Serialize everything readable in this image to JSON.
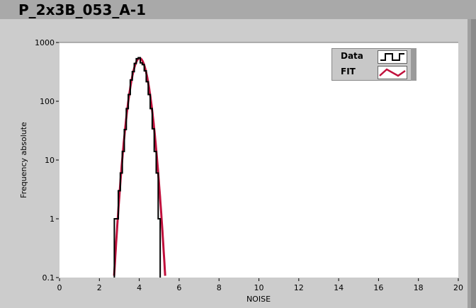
{
  "title": "P_2x3B_053_A-1",
  "chart_data": {
    "type": "line",
    "xlabel": "NOISE",
    "ylabel": "Frequency absolute",
    "xlim": [
      0,
      20
    ],
    "ylim": [
      0.1,
      1000
    ],
    "yscale": "log",
    "xticks": [
      "0",
      "2",
      "4",
      "6",
      "8",
      "10",
      "12",
      "14",
      "16",
      "18",
      "20"
    ],
    "yticks": [
      "0.1",
      "1",
      "10",
      "100",
      "1000"
    ],
    "legend_position": "top-right",
    "series": [
      {
        "name": "Data",
        "style": "step",
        "color": "#000000",
        "x": [
          2.8,
          2.9,
          3.0,
          3.1,
          3.2,
          3.3,
          3.4,
          3.5,
          3.6,
          3.7,
          3.8,
          3.9,
          4.0,
          4.1,
          4.2,
          4.3,
          4.4,
          4.5,
          4.6,
          4.7,
          4.8,
          4.9,
          5.0
        ],
        "y": [
          1,
          1,
          3,
          6,
          14,
          33,
          75,
          130,
          230,
          320,
          440,
          530,
          550,
          450,
          420,
          330,
          215,
          130,
          75,
          34,
          14,
          6,
          1
        ]
      },
      {
        "name": "FIT",
        "style": "line",
        "color": "#c0103c",
        "gaussian": {
          "amplitude": 540,
          "mean": 4.02,
          "sigma": 0.31
        }
      }
    ]
  }
}
